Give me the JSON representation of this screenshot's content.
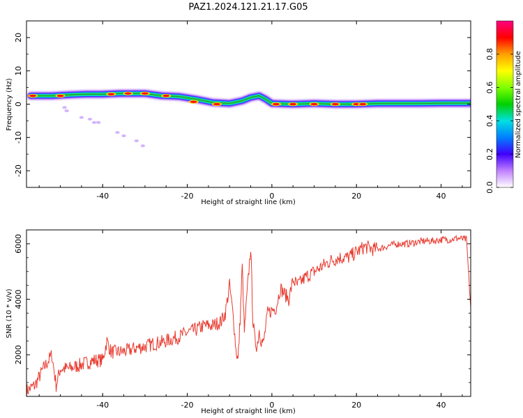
{
  "title": "PAZ1.2024.121.21.17.G05",
  "chart_data": [
    {
      "type": "heatmap",
      "name": "spectrogram",
      "xlabel": "Height of straight line (km)",
      "ylabel": "Frequency (Hz)",
      "xlim": [
        -58,
        47
      ],
      "ylim": [
        -25,
        25
      ],
      "xticks": [
        -40,
        -20,
        0,
        20,
        40
      ],
      "yticks": [
        -20,
        -10,
        0,
        10,
        20
      ],
      "colorbar": {
        "label": "Normalized spectral amplitude",
        "range": [
          0,
          1
        ],
        "ticks": [
          "0.0",
          "0.2",
          "0.4",
          "0.6",
          "0.8"
        ],
        "colors": [
          "#ffffff",
          "#c080ff",
          "#4000ff",
          "#0080ff",
          "#00e0e0",
          "#00d000",
          "#80ff00",
          "#ffff00",
          "#ffa000",
          "#ff0000",
          "#ff0080"
        ]
      },
      "ridge": [
        {
          "x": -57,
          "f": 2.5
        },
        {
          "x": -52,
          "f": 2.5
        },
        {
          "x": -48,
          "f": 2.8
        },
        {
          "x": -44,
          "f": 3.0
        },
        {
          "x": -40,
          "f": 3.0
        },
        {
          "x": -36,
          "f": 3.2
        },
        {
          "x": -30,
          "f": 3.2
        },
        {
          "x": -26,
          "f": 2.5
        },
        {
          "x": -22,
          "f": 2.3
        },
        {
          "x": -18,
          "f": 1.5
        },
        {
          "x": -14,
          "f": 0.5
        },
        {
          "x": -10,
          "f": 0.2
        },
        {
          "x": -7,
          "f": 1.0
        },
        {
          "x": -5,
          "f": 2.0
        },
        {
          "x": -3,
          "f": 2.5
        },
        {
          "x": -1.5,
          "f": 1.5
        },
        {
          "x": 0,
          "f": 0.2
        },
        {
          "x": 5,
          "f": 0.0
        },
        {
          "x": 10,
          "f": 0.2
        },
        {
          "x": 15,
          "f": 0.0
        },
        {
          "x": 20,
          "f": 0.0
        },
        {
          "x": 25,
          "f": 0.2
        },
        {
          "x": 30,
          "f": 0.2
        },
        {
          "x": 35,
          "f": 0.2
        },
        {
          "x": 40,
          "f": 0.3
        },
        {
          "x": 47,
          "f": 0.3
        }
      ],
      "hot_spots": [
        {
          "x": -56.5,
          "f": 2.5
        },
        {
          "x": -50,
          "f": 2.5
        },
        {
          "x": -38,
          "f": 3.0
        },
        {
          "x": -34,
          "f": 3.2
        },
        {
          "x": -30,
          "f": 3.2
        },
        {
          "x": -25,
          "f": 2.5
        },
        {
          "x": -18.5,
          "f": 0.7
        },
        {
          "x": -13,
          "f": 0.0
        },
        {
          "x": 1,
          "f": 0.0
        },
        {
          "x": 5,
          "f": 0.0
        },
        {
          "x": 10,
          "f": 0.0
        },
        {
          "x": 15,
          "f": 0.0
        },
        {
          "x": 20,
          "f": 0.0
        },
        {
          "x": 21.5,
          "f": 0.0
        }
      ],
      "faint_blobs": [
        {
          "x": -49,
          "f": -1.0
        },
        {
          "x": -48.5,
          "f": -2.0
        },
        {
          "x": -45,
          "f": -4.0
        },
        {
          "x": -43,
          "f": -4.5
        },
        {
          "x": -42,
          "f": -5.5
        },
        {
          "x": -41,
          "f": -5.5
        },
        {
          "x": -36.5,
          "f": -8.5
        },
        {
          "x": -35,
          "f": -9.5
        },
        {
          "x": -32,
          "f": -11.0
        },
        {
          "x": -30.5,
          "f": -12.5
        }
      ]
    },
    {
      "type": "line",
      "name": "snr",
      "xlabel": "Height of straight line (km)",
      "ylabel": "SNR (10 * v/v)",
      "xlim": [
        -58,
        47
      ],
      "ylim": [
        500,
        6500
      ],
      "xticks": [
        -40,
        -20,
        0,
        20,
        40
      ],
      "yticks": [
        2000,
        4000,
        6000
      ],
      "color": "#e8392e",
      "x": [
        -58,
        -56,
        -54,
        -52,
        -51,
        -50,
        -48,
        -46,
        -44,
        -42,
        -40,
        -39,
        -38,
        -36,
        -34,
        -32,
        -30,
        -28,
        -26,
        -24,
        -22,
        -20,
        -18,
        -16,
        -14,
        -12,
        -11,
        -10,
        -9,
        -8.5,
        -8,
        -7.5,
        -7,
        -6.5,
        -6,
        -5,
        -4.5,
        -4,
        -3.5,
        -3,
        -2.5,
        -2,
        -1,
        0,
        1,
        2,
        3,
        4,
        5,
        6,
        8,
        10,
        12,
        14,
        16,
        18,
        20,
        22,
        24,
        26,
        28,
        30,
        32,
        34,
        36,
        38,
        40,
        42,
        44,
        46,
        47
      ],
      "y": [
        700,
        900,
        1500,
        2000,
        900,
        1500,
        1500,
        1600,
        1700,
        1800,
        1800,
        2500,
        2100,
        2100,
        2150,
        2250,
        2300,
        2400,
        2450,
        2550,
        2650,
        2800,
        2900,
        3050,
        3050,
        3200,
        3500,
        4500,
        3200,
        2200,
        1800,
        3300,
        5200,
        2800,
        3900,
        5900,
        3300,
        2500,
        2300,
        2900,
        2500,
        2400,
        3500,
        3600,
        3700,
        4400,
        4200,
        4000,
        4700,
        4500,
        4800,
        5000,
        5200,
        5400,
        5500,
        5500,
        5700,
        5900,
        5800,
        5850,
        5950,
        6000,
        6000,
        6050,
        6100,
        6100,
        6150,
        6150,
        6200,
        6150,
        3700
      ]
    }
  ]
}
